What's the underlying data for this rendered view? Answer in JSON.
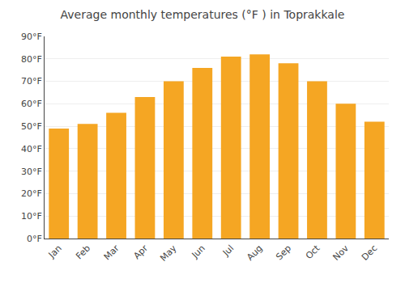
{
  "chart_data": {
    "type": "bar",
    "title": "Average monthly temperatures (°F ) in Toprakkale",
    "categories": [
      "Jan",
      "Feb",
      "Mar",
      "Apr",
      "May",
      "Jun",
      "Jul",
      "Aug",
      "Sep",
      "Oct",
      "Nov",
      "Dec"
    ],
    "values": [
      49,
      51,
      56,
      63,
      70,
      76,
      81,
      82,
      78,
      70,
      60,
      52
    ],
    "color": "#F5A623",
    "ylim": [
      0,
      90
    ],
    "yticks": [
      {
        "value": 0,
        "label": "0°F"
      },
      {
        "value": 10,
        "label": "10°F"
      },
      {
        "value": 20,
        "label": "20°F"
      },
      {
        "value": 30,
        "label": "30°F"
      },
      {
        "value": 40,
        "label": "40°F"
      },
      {
        "value": 50,
        "label": "50°F"
      },
      {
        "value": 60,
        "label": "60°F"
      },
      {
        "value": 70,
        "label": "70°F"
      },
      {
        "value": 80,
        "label": "80°F"
      },
      {
        "value": 90,
        "label": "90°F"
      }
    ],
    "grid": true
  }
}
